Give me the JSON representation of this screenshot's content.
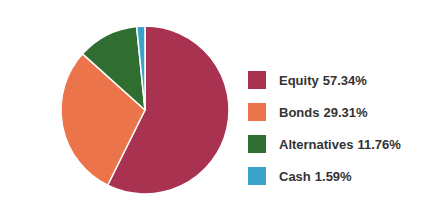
{
  "chart_data": {
    "type": "pie",
    "categories": [
      "Equity",
      "Bonds",
      "Alternatives",
      "Cash"
    ],
    "values": [
      57.34,
      29.31,
      11.76,
      1.59
    ],
    "value_labels": [
      "57.34%",
      "29.31%",
      "11.76%",
      "1.59%"
    ],
    "colors": [
      "#a8324f",
      "#eb744a",
      "#2f6e30",
      "#3da2c9"
    ],
    "legend": "right"
  }
}
